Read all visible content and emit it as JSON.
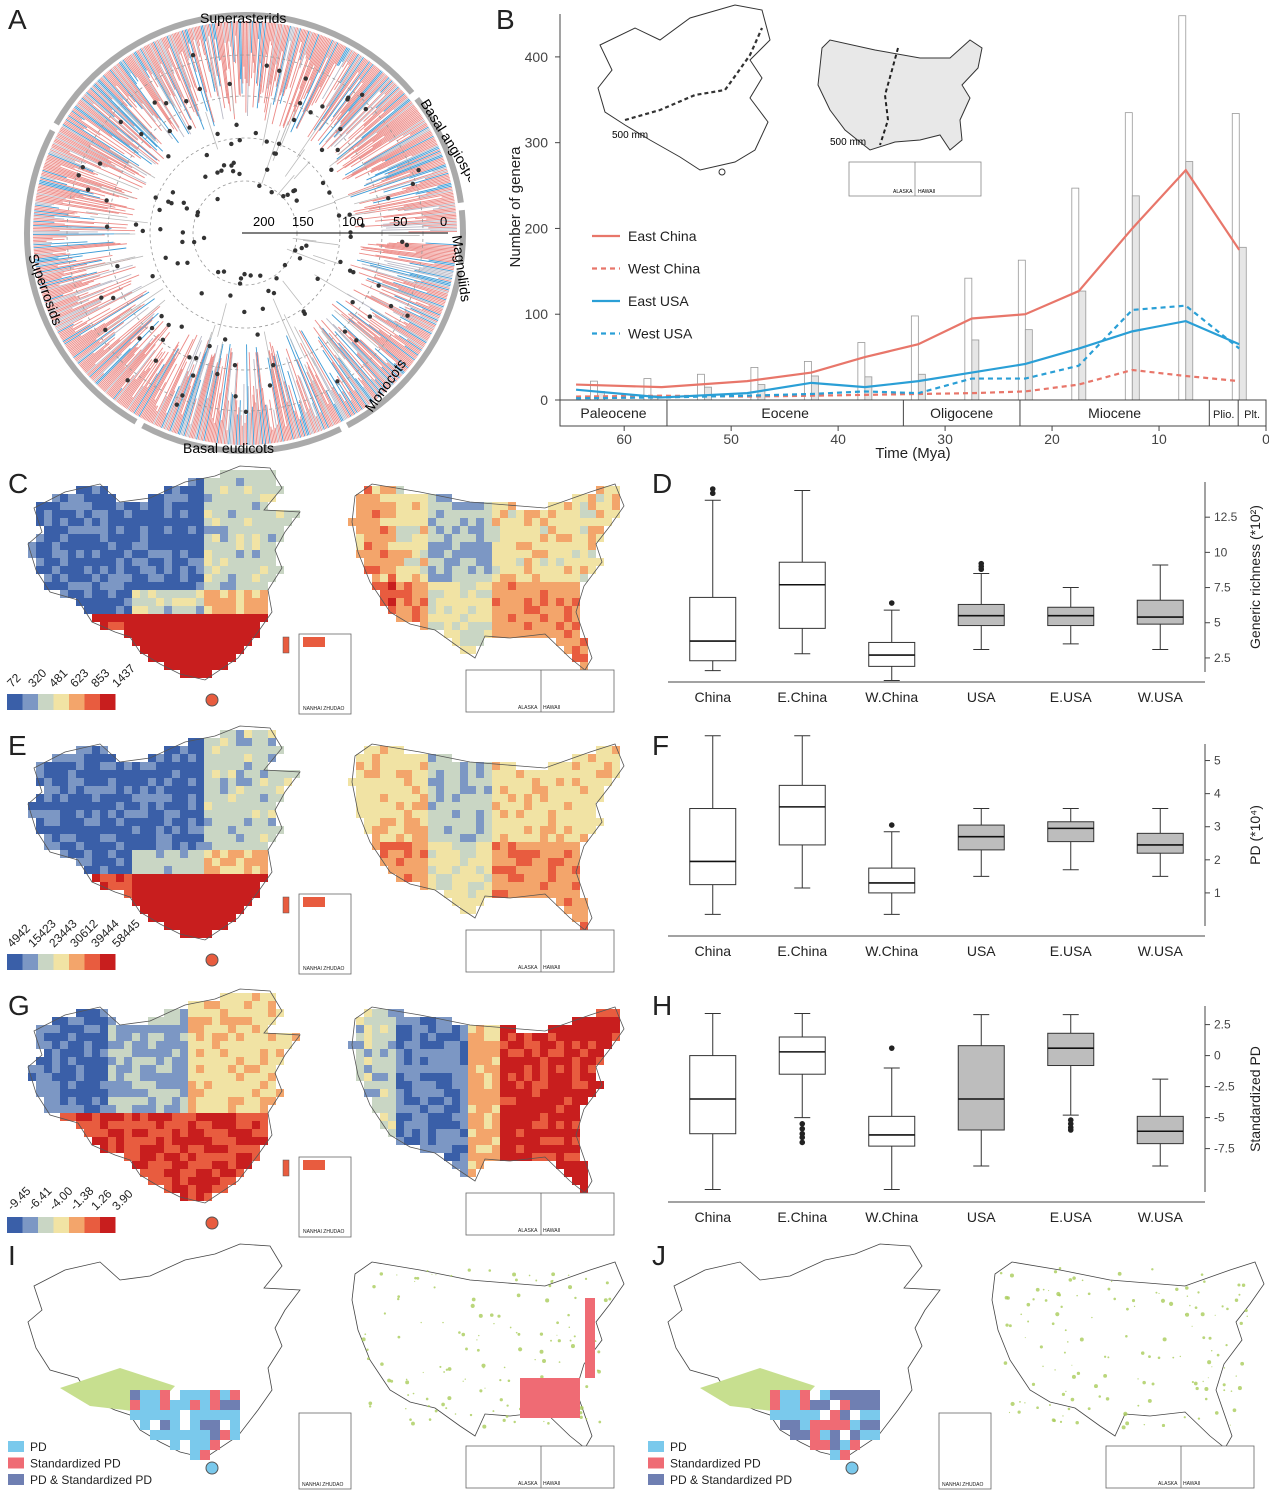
{
  "panels": [
    "A",
    "B",
    "C",
    "D",
    "E",
    "F",
    "G",
    "H",
    "I",
    "J"
  ],
  "panelA": {
    "clades": [
      "Superasterids",
      "Basal angiosperm",
      "Magnoliids",
      "Monocots",
      "Basal eudicots",
      "Superrosids"
    ],
    "scale_ticks": [
      "200",
      "150",
      "100",
      "50",
      "0"
    ]
  },
  "panelB": {
    "inset_labels": {
      "china_isohyet": "500 mm",
      "usa_isohyet": "500 mm",
      "alaska": "ALASKA",
      "hawaii": "HAWAII"
    },
    "epochs": [
      "Paleocene",
      "Eocene",
      "Oligocene",
      "Miocene",
      "Plio.",
      "Plt."
    ]
  },
  "maps": {
    "nanhai": "NANHAI ZHUDAO",
    "alaska": "ALASKA",
    "hawaii": "HAWAII",
    "scaleC": [
      "72",
      "320",
      "481",
      "623",
      "853",
      "1437"
    ],
    "scaleE": [
      "4942",
      "15423",
      "23443",
      "30612",
      "39444",
      "58445"
    ],
    "scaleG": [
      "-9.45",
      "-6.41",
      "-4.00",
      "-1.38",
      "1.26",
      "3.90"
    ],
    "legendI": [
      "PD",
      "Standardized PD",
      "PD & Standardized PD"
    ],
    "legendJ": [
      "PD",
      "Standardized PD",
      "PD & Standardized PD"
    ]
  },
  "colors": {
    "east_china": "#e8766a",
    "west_china": "#e8766a",
    "east_usa": "#2a9fd6",
    "west_usa": "#2a9fd6",
    "pd": "#7ac9ec",
    "std_pd": "#ef6b74",
    "both": "#6f7fb2",
    "ramp": [
      "#3a5fa8",
      "#7c97c4",
      "#c9d6c4",
      "#f1e3a4",
      "#f3a56b",
      "#e85c3f",
      "#c81e1e"
    ]
  },
  "chart_data": [
    {
      "id": "B",
      "type": "line",
      "title": "",
      "xlabel": "Time (Mya)",
      "ylabel": "Number of genera",
      "xlim": [
        66,
        0
      ],
      "ylim": [
        0,
        450
      ],
      "x_ticks": [
        "60",
        "50",
        "40",
        "30",
        "20",
        "10",
        "0"
      ],
      "y_ticks": [
        "0",
        "100",
        "200",
        "300",
        "400"
      ],
      "x": [
        64.5,
        56.5,
        48.5,
        42.5,
        37.5,
        32.5,
        27.5,
        22.5,
        17.5,
        12.5,
        7.5,
        2.5
      ],
      "series": [
        {
          "name": "East China",
          "style": "solid",
          "color": "#e8766a",
          "values": [
            18,
            15,
            22,
            32,
            50,
            65,
            95,
            100,
            127,
            200,
            268,
            175
          ]
        },
        {
          "name": "West China",
          "style": "dashed",
          "color": "#e8766a",
          "values": [
            4,
            5,
            4,
            5,
            6,
            7,
            8,
            10,
            18,
            35,
            28,
            22
          ]
        },
        {
          "name": "East USA",
          "style": "solid",
          "color": "#2a9fd6",
          "values": [
            12,
            3,
            8,
            20,
            15,
            22,
            32,
            42,
            60,
            80,
            92,
            65
          ]
        },
        {
          "name": "West USA",
          "style": "dashed",
          "color": "#2a9fd6",
          "values": [
            2,
            3,
            5,
            7,
            10,
            8,
            25,
            25,
            40,
            105,
            110,
            60
          ]
        }
      ],
      "bars_x": [
        62.5,
        57.5,
        52.5,
        47.5,
        42.5,
        37.5,
        32.5,
        27.5,
        22.5,
        17.5,
        12.5,
        7.5,
        2.5
      ],
      "bars_open": [
        22,
        25,
        30,
        38,
        45,
        67,
        98,
        142,
        163,
        247,
        335,
        448,
        334
      ],
      "bars_filled": [
        10,
        5,
        15,
        18,
        28,
        27,
        30,
        70,
        82,
        127,
        238,
        278,
        178
      ],
      "epochs": [
        "Paleocene",
        "Eocene",
        "Oligocene",
        "Miocene",
        "Plio.",
        "Plt."
      ]
    },
    {
      "id": "D",
      "type": "box",
      "ylabel": "Generic richness (*10²)",
      "y_ticks": [
        "2.5",
        "5",
        "7.5",
        "10",
        "12.5"
      ],
      "ylim": [
        1.5,
        15
      ],
      "categories": [
        "China",
        "E.China",
        "W.China",
        "USA",
        "E.USA",
        "W.USA"
      ],
      "boxes": [
        {
          "min": 1.6,
          "q1": 2.3,
          "median": 3.7,
          "q3": 6.8,
          "max": 13.7,
          "outliers": [
            14.2,
            14.5
          ],
          "filled": false
        },
        {
          "min": 2.8,
          "q1": 4.6,
          "median": 7.7,
          "q3": 9.3,
          "max": 14.4,
          "outliers": [],
          "filled": false
        },
        {
          "min": 0.9,
          "q1": 1.9,
          "median": 2.7,
          "q3": 3.6,
          "max": 5.9,
          "outliers": [
            6.4
          ],
          "filled": false
        },
        {
          "min": 3.1,
          "q1": 4.8,
          "median": 5.5,
          "q3": 6.3,
          "max": 8.5,
          "outliers": [
            8.8,
            9.0,
            9.2
          ],
          "filled": true
        },
        {
          "min": 3.5,
          "q1": 4.8,
          "median": 5.5,
          "q3": 6.1,
          "max": 7.5,
          "outliers": [],
          "filled": true
        },
        {
          "min": 3.1,
          "q1": 4.9,
          "median": 5.4,
          "q3": 6.6,
          "max": 9.1,
          "outliers": [],
          "filled": true
        }
      ]
    },
    {
      "id": "F",
      "type": "box",
      "ylabel": "PD (*10⁴)",
      "y_ticks": [
        "1",
        "2",
        "3",
        "4",
        "5"
      ],
      "ylim": [
        0,
        5.5
      ],
      "categories": [
        "China",
        "E.China",
        "W.China",
        "USA",
        "E.USA",
        "W.USA"
      ],
      "boxes": [
        {
          "min": 0.35,
          "q1": 1.25,
          "median": 1.95,
          "q3": 3.55,
          "max": 5.75,
          "outliers": [],
          "filled": false
        },
        {
          "min": 1.15,
          "q1": 2.45,
          "median": 3.6,
          "q3": 4.25,
          "max": 5.75,
          "outliers": [],
          "filled": false
        },
        {
          "min": 0.35,
          "q1": 1.0,
          "median": 1.3,
          "q3": 1.75,
          "max": 2.85,
          "outliers": [
            3.05
          ],
          "filled": false
        },
        {
          "min": 1.5,
          "q1": 2.3,
          "median": 2.7,
          "q3": 3.05,
          "max": 3.55,
          "outliers": [],
          "filled": true
        },
        {
          "min": 1.7,
          "q1": 2.55,
          "median": 2.95,
          "q3": 3.15,
          "max": 3.55,
          "outliers": [],
          "filled": true
        },
        {
          "min": 1.5,
          "q1": 2.2,
          "median": 2.45,
          "q3": 2.8,
          "max": 3.55,
          "outliers": [],
          "filled": true
        }
      ]
    },
    {
      "id": "H",
      "type": "box",
      "ylabel": "Standardized PD",
      "y_ticks": [
        "2.5",
        "0",
        "-2.5",
        "-5",
        "-7.5"
      ],
      "ylim": [
        -11,
        4
      ],
      "categories": [
        "China",
        "E.China",
        "W.China",
        "USA",
        "E.USA",
        "W.USA"
      ],
      "boxes": [
        {
          "min": -10.8,
          "q1": -6.3,
          "median": -3.5,
          "q3": 0.0,
          "max": 3.4,
          "outliers": [],
          "filled": false
        },
        {
          "min": -5.0,
          "q1": -1.5,
          "median": 0.3,
          "q3": 1.5,
          "max": 3.4,
          "outliers": [
            -5.5,
            -5.9,
            -6.3,
            -6.6,
            -7.0
          ],
          "filled": false
        },
        {
          "min": -10.8,
          "q1": -7.3,
          "median": -6.4,
          "q3": -4.9,
          "max": -1.0,
          "outliers": [
            0.6
          ],
          "filled": false
        },
        {
          "min": -8.9,
          "q1": -6.0,
          "median": -3.5,
          "q3": 0.8,
          "max": 3.3,
          "outliers": [],
          "filled": true
        },
        {
          "min": -4.8,
          "q1": -0.8,
          "median": 0.6,
          "q3": 1.8,
          "max": 3.3,
          "outliers": [
            -5.2,
            -5.5,
            -5.8,
            -6.0
          ],
          "filled": true
        },
        {
          "min": -8.9,
          "q1": -7.1,
          "median": -6.1,
          "q3": -4.9,
          "max": -1.9,
          "outliers": [],
          "filled": true
        }
      ]
    }
  ]
}
